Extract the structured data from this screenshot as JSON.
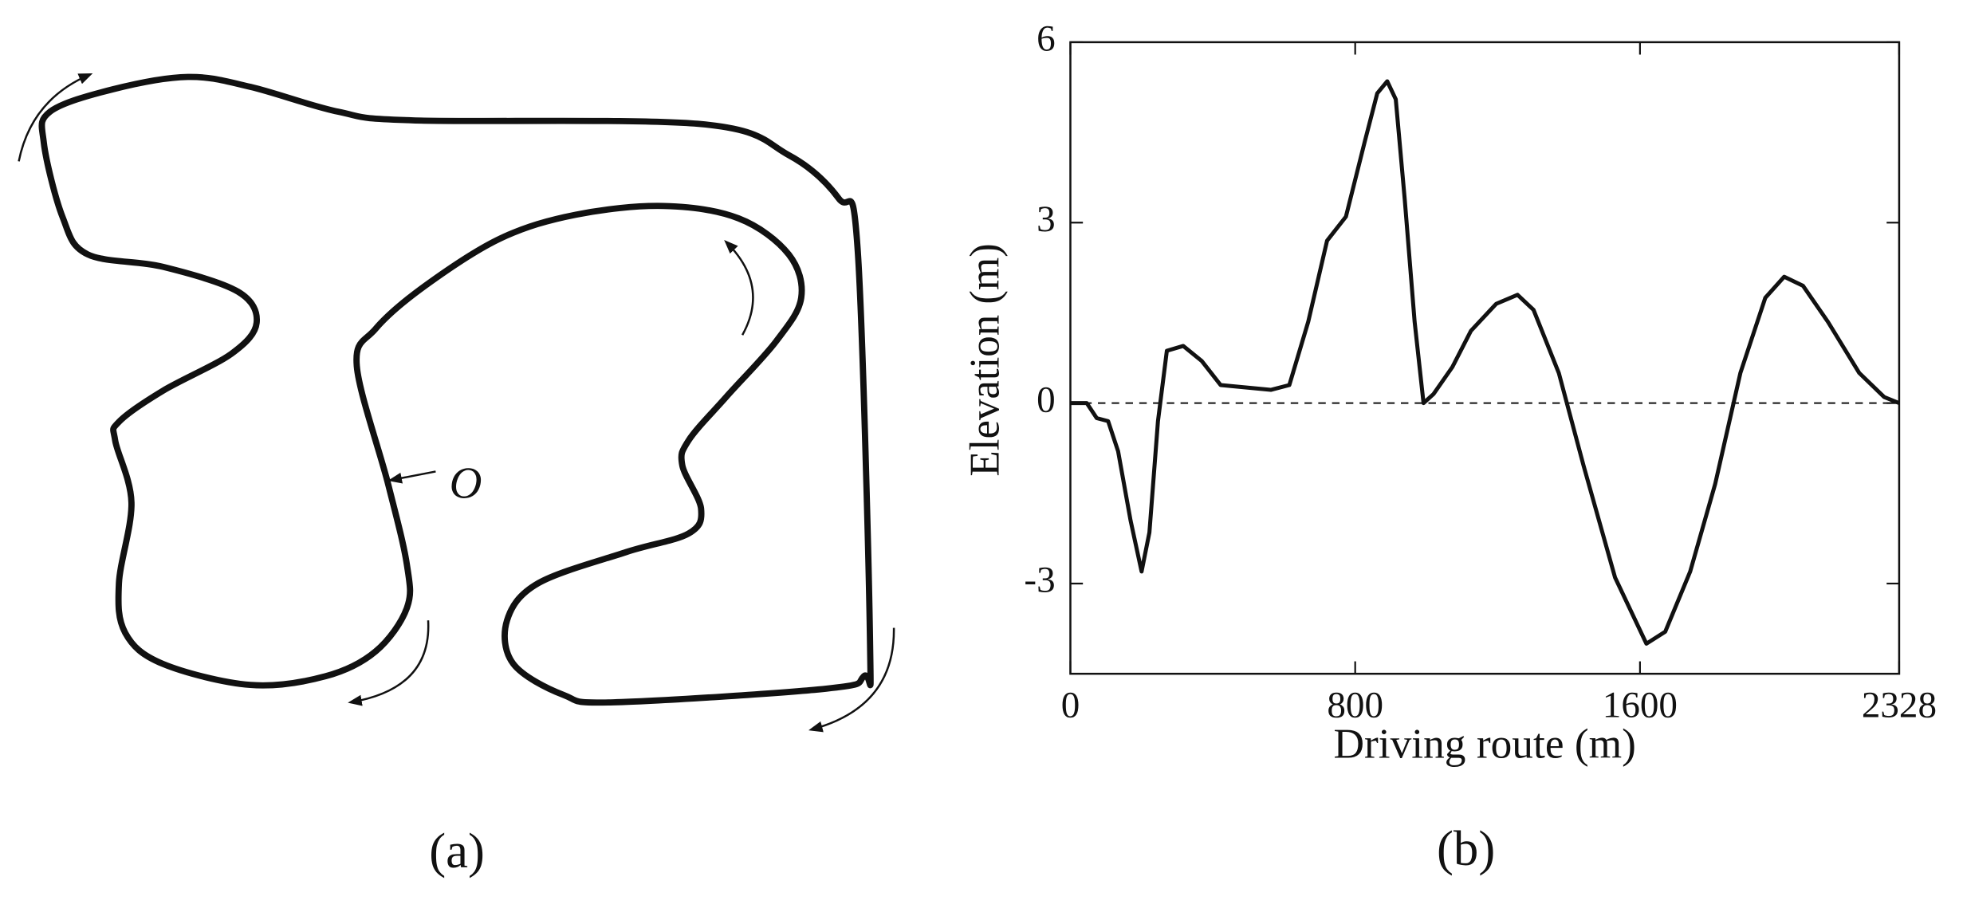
{
  "diagram": {
    "panel_label": "(a)",
    "origin_label": "O"
  },
  "chart_data": {
    "type": "line",
    "panel_label": "(b)",
    "x_label": "Driving route (m)",
    "y_label": "Elevation (m)",
    "xlim": [
      0,
      2328
    ],
    "ylim": [
      -4.5,
      6
    ],
    "xticks": [
      0,
      800,
      1600,
      2328
    ],
    "yticks": [
      -3,
      0,
      3,
      6
    ],
    "reference_line": 0,
    "series": [
      {
        "color": "#111111",
        "x": [
          0,
          46,
          74,
          106,
          134,
          169,
          200,
          222,
          246,
          271,
          317,
          369,
          422,
          510,
          563,
          615,
          668,
          721,
          774,
          827,
          862,
          890,
          914,
          939,
          967,
          992,
          1020,
          1073,
          1125,
          1196,
          1256,
          1301,
          1372,
          1442,
          1530,
          1618,
          1671,
          1741,
          1811,
          1882,
          1952,
          2005,
          2058,
          2128,
          2216,
          2286,
          2328
        ],
        "values": [
          0,
          0,
          -0.25,
          -0.3,
          -0.8,
          -1.95,
          -2.8,
          -2.15,
          -0.3,
          0.87,
          0.95,
          0.7,
          0.3,
          0.25,
          0.22,
          0.3,
          1.35,
          2.7,
          3.1,
          4.35,
          5.15,
          5.35,
          5.05,
          3.4,
          1.35,
          0,
          0.15,
          0.6,
          1.2,
          1.65,
          1.8,
          1.55,
          0.5,
          -1.05,
          -2.9,
          -4.0,
          -3.8,
          -2.8,
          -1.35,
          0.5,
          1.75,
          2.1,
          1.95,
          1.35,
          0.5,
          0.1,
          0
        ]
      }
    ]
  }
}
